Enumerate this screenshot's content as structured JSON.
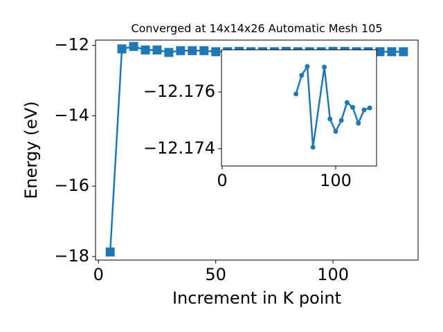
{
  "chart_data": [
    {
      "type": "line",
      "title": "Converged at 14x14x26 Automatic Mesh 105",
      "xlabel": "Increment in K point",
      "ylabel": "Energy (eV)",
      "x": [
        5,
        10,
        15,
        20,
        25,
        30,
        35,
        40,
        45,
        50,
        55,
        60,
        65,
        70,
        75,
        80,
        85,
        90,
        95,
        100,
        105,
        110,
        115,
        120,
        125,
        130
      ],
      "series": [
        {
          "color": "#1f77b4",
          "marker": "square",
          "values": [
            -17.87,
            -12.1,
            -12.03,
            -12.13,
            -12.13,
            -12.2,
            -12.15,
            -12.15,
            -12.15,
            -12.18,
            -12.18,
            -12.17,
            -12.18,
            -12.18,
            -12.18,
            -12.17,
            -12.18,
            -12.18,
            -12.18,
            -12.17,
            -12.17,
            -12.18,
            -12.18,
            -12.18,
            -12.18,
            -12.18
          ]
        }
      ],
      "xlim": [
        -1.25,
        136.25
      ],
      "ylim": [
        -18.1,
        -11.85
      ],
      "xticks": [
        0,
        50,
        100
      ],
      "yticks": [
        {
          "value": -18,
          "label": "−18"
        },
        {
          "value": -16,
          "label": "−16"
        },
        {
          "value": -14,
          "label": "−14"
        },
        {
          "value": -12,
          "label": "−12"
        }
      ]
    },
    {
      "type": "line",
      "x": [
        65,
        70,
        75,
        80,
        90,
        95,
        100,
        105,
        110,
        115,
        120,
        125,
        130
      ],
      "series": [
        {
          "color": "#1f77b4",
          "marker": "circle",
          "values": [
            -12.17593,
            -12.17659,
            -12.1769,
            -12.17405,
            -12.17688,
            -12.17505,
            -12.17461,
            -12.175,
            -12.17563,
            -12.17546,
            -12.1749,
            -12.17537,
            -12.17544
          ]
        }
      ],
      "xlim": [
        -0.6,
        136
      ],
      "ylim": [
        -12.17339,
        -12.17749
      ],
      "xticks": [
        0,
        100
      ],
      "yticks": [
        {
          "value": -12.176,
          "label": "−12.176"
        },
        {
          "value": -12.174,
          "label": "−12.174"
        }
      ]
    }
  ]
}
